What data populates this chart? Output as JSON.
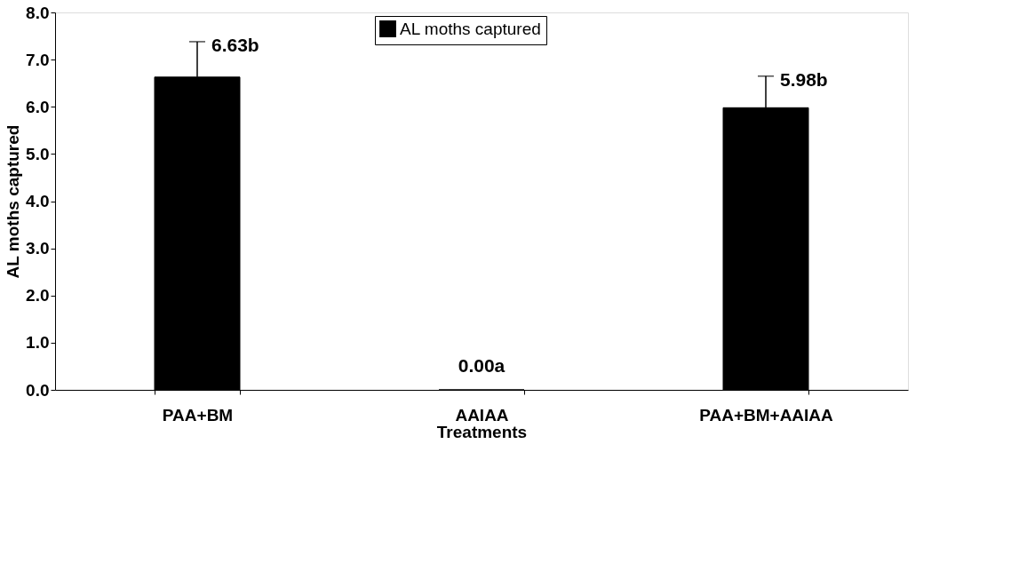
{
  "chart_data": {
    "type": "bar",
    "xlabel": "Treatments",
    "ylabel": "AL moths captured",
    "categories": [
      "PAA+BM",
      "AAIAA",
      "PAA+BM+AAIAA"
    ],
    "series": [
      {
        "name": "AL moths captured",
        "color": "#000000",
        "values": [
          6.63,
          0.0,
          5.98
        ],
        "errors": [
          [
            6.63,
            7.38
          ],
          null,
          [
            5.98,
            6.65
          ]
        ],
        "value_labels": [
          "6.63b",
          "0.00a",
          "5.98b"
        ]
      }
    ],
    "ylim": [
      0,
      8
    ],
    "yticks": [
      {
        "value": 0,
        "label": "0.0"
      },
      {
        "value": 1,
        "label": "1.0"
      },
      {
        "value": 2,
        "label": "2.0"
      },
      {
        "value": 3,
        "label": "3.0"
      },
      {
        "value": 4,
        "label": "4.0"
      },
      {
        "value": 5,
        "label": "5.0"
      },
      {
        "value": 6,
        "label": "6.0"
      },
      {
        "value": 7,
        "label": "7.0"
      },
      {
        "value": 8,
        "label": "8.0"
      }
    ],
    "legend": "top",
    "grid": false
  }
}
